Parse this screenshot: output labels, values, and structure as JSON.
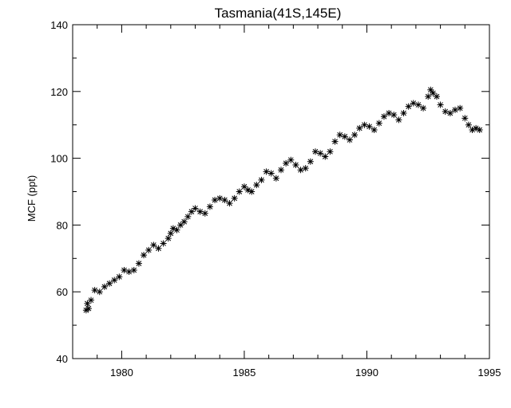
{
  "chart_data": {
    "type": "scatter",
    "title": "Tasmania(41S,145E)",
    "xlabel": "",
    "ylabel": "MCF (ppt)",
    "xlim": [
      1978,
      1995
    ],
    "ylim": [
      40,
      140
    ],
    "xticks": [
      1980,
      1985,
      1990,
      1995
    ],
    "yticks": [
      40,
      60,
      80,
      100,
      120,
      140
    ],
    "marker": "asterisk",
    "grid": false,
    "series": [
      {
        "values": [
          [
            1978.55,
            54.5
          ],
          [
            1978.6,
            56.5
          ],
          [
            1978.65,
            55.0
          ],
          [
            1978.75,
            57.5
          ],
          [
            1978.9,
            60.5
          ],
          [
            1979.1,
            60.0
          ],
          [
            1979.3,
            61.5
          ],
          [
            1979.5,
            62.5
          ],
          [
            1979.7,
            63.5
          ],
          [
            1979.9,
            64.5
          ],
          [
            1980.1,
            66.5
          ],
          [
            1980.3,
            66.0
          ],
          [
            1980.5,
            66.5
          ],
          [
            1980.7,
            68.5
          ],
          [
            1980.9,
            71.0
          ],
          [
            1981.1,
            72.5
          ],
          [
            1981.3,
            74.0
          ],
          [
            1981.5,
            73.0
          ],
          [
            1981.7,
            74.5
          ],
          [
            1981.9,
            76.0
          ],
          [
            1982.0,
            77.5
          ],
          [
            1982.1,
            79.0
          ],
          [
            1982.25,
            78.5
          ],
          [
            1982.4,
            80.0
          ],
          [
            1982.55,
            81.0
          ],
          [
            1982.7,
            82.5
          ],
          [
            1982.85,
            84.0
          ],
          [
            1983.0,
            85.0
          ],
          [
            1983.2,
            84.0
          ],
          [
            1983.4,
            83.5
          ],
          [
            1983.6,
            85.5
          ],
          [
            1983.8,
            87.5
          ],
          [
            1984.0,
            88.0
          ],
          [
            1984.2,
            87.5
          ],
          [
            1984.4,
            86.5
          ],
          [
            1984.6,
            88.0
          ],
          [
            1984.8,
            90.0
          ],
          [
            1985.0,
            91.5
          ],
          [
            1985.15,
            90.5
          ],
          [
            1985.3,
            90.0
          ],
          [
            1985.5,
            92.0
          ],
          [
            1985.7,
            93.5
          ],
          [
            1985.9,
            96.0
          ],
          [
            1986.1,
            95.5
          ],
          [
            1986.3,
            94.0
          ],
          [
            1986.5,
            96.5
          ],
          [
            1986.7,
            98.5
          ],
          [
            1986.9,
            99.5
          ],
          [
            1987.1,
            98.0
          ],
          [
            1987.3,
            96.5
          ],
          [
            1987.5,
            97.0
          ],
          [
            1987.7,
            99.0
          ],
          [
            1987.9,
            102.0
          ],
          [
            1988.1,
            101.5
          ],
          [
            1988.3,
            100.5
          ],
          [
            1988.5,
            102.0
          ],
          [
            1988.7,
            105.0
          ],
          [
            1988.9,
            107.0
          ],
          [
            1989.1,
            106.5
          ],
          [
            1989.3,
            105.5
          ],
          [
            1989.5,
            107.0
          ],
          [
            1989.7,
            109.0
          ],
          [
            1989.9,
            110.0
          ],
          [
            1990.1,
            109.5
          ],
          [
            1990.3,
            108.5
          ],
          [
            1990.5,
            110.5
          ],
          [
            1990.7,
            112.5
          ],
          [
            1990.9,
            113.5
          ],
          [
            1991.1,
            113.0
          ],
          [
            1991.3,
            111.5
          ],
          [
            1991.5,
            113.5
          ],
          [
            1991.7,
            115.5
          ],
          [
            1991.9,
            116.5
          ],
          [
            1992.1,
            116.0
          ],
          [
            1992.3,
            115.0
          ],
          [
            1992.5,
            118.5
          ],
          [
            1992.6,
            120.5
          ],
          [
            1992.7,
            119.5
          ],
          [
            1992.85,
            118.5
          ],
          [
            1993.0,
            116.0
          ],
          [
            1993.2,
            114.0
          ],
          [
            1993.4,
            113.5
          ],
          [
            1993.6,
            114.5
          ],
          [
            1993.8,
            115.0
          ],
          [
            1994.0,
            112.0
          ],
          [
            1994.15,
            110.0
          ],
          [
            1994.3,
            108.5
          ],
          [
            1994.45,
            109.0
          ],
          [
            1994.6,
            108.5
          ]
        ]
      }
    ]
  }
}
